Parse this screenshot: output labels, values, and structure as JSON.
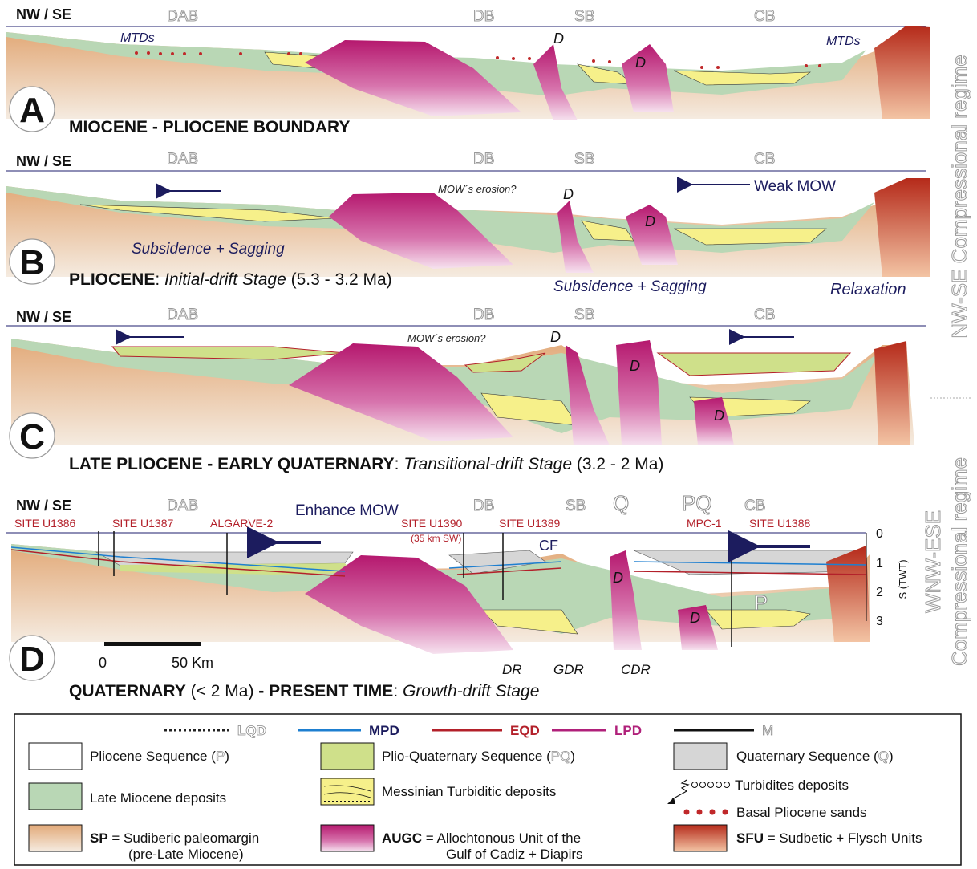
{
  "colors": {
    "sp_top": "#e2a978",
    "sp_bottom": "#f3e6d8",
    "late_miocene": "#b9d7b5",
    "pliocene": "#ffffff",
    "plio_quaternary": "#cfe08a",
    "quaternary": "#d6d6d6",
    "messinian": "#f6f08a",
    "augc_top": "#b5186e",
    "augc_bottom": "#f3d9ec",
    "sfu_top": "#b52a1a",
    "sfu_bottom": "#f3c4a4",
    "lqd": "#222222",
    "mpd": "#1e7fd0",
    "eqd": "#b3202a",
    "lpd": "#b0207a",
    "m": "#111111",
    "navy": "#1c1c5e",
    "sand": "#c0282a"
  },
  "side_labels": {
    "right_top": "NW-SE Compressional regime",
    "right_bottom_1": "WNW-ESE",
    "right_bottom_2": "Compressional regime"
  },
  "panels": {
    "A": {
      "letter": "A",
      "orientation": "NW / SE",
      "basins": {
        "dab": "DAB",
        "db": "DB",
        "sb": "SB",
        "cb": "CB"
      },
      "title_bold": "MIOCENE - PLIOCENE BOUNDARY",
      "labels": {
        "mtds_left": "MTDs",
        "mtds_right": "MTDs",
        "d1": "D",
        "d2": "D"
      }
    },
    "B": {
      "letter": "B",
      "orientation": "NW / SE",
      "basins": {
        "dab": "DAB",
        "db": "DB",
        "sb": "SB",
        "cb": "CB"
      },
      "title_bold": "PLIOCENE",
      "title_colon": ": ",
      "title_italic": "Initial-drift Stage",
      "title_plain": " (5.3 - 3.2 Ma)",
      "labels": {
        "mow_erosion": "MOW´s erosion?",
        "weak_mow": "Weak MOW",
        "subsidence_left": "Subsidence + Sagging",
        "subsidence_right": "Subsidence + Sagging",
        "relaxation": "Relaxation",
        "d1": "D",
        "d2": "D"
      }
    },
    "C": {
      "letter": "C",
      "orientation": "NW / SE",
      "basins": {
        "dab": "DAB",
        "db": "DB",
        "sb": "SB",
        "cb": "CB"
      },
      "title_bold": "LATE PLIOCENE - EARLY QUATERNARY",
      "title_colon": ": ",
      "title_italic": "Transitional-drift Stage",
      "title_plain": "  (3.2 - 2 Ma)",
      "labels": {
        "mow_erosion": "MOW´s erosion?",
        "d1": "D",
        "d2": "D",
        "d3": "D"
      }
    },
    "D": {
      "letter": "D",
      "orientation": "NW / SE",
      "basins": {
        "dab": "DAB",
        "db": "DB",
        "sb": "SB",
        "cb": "CB"
      },
      "title_bold_1": "QUATERNARY",
      "title_plain_1": " (< 2 Ma) ",
      "title_bold_2": "- PRESENT TIME",
      "title_colon": ": ",
      "title_italic": "Growth-drift Stage",
      "labels": {
        "enhance_mow": "Enhance MOW",
        "site_u1386": "SITE U1386",
        "site_u1387": "SITE U1387",
        "algarve": "ALGARVE-2",
        "site_u1390": "SITE U1390",
        "site_u1390_note": "(35 km SW)",
        "site_u1389": "SITE U1389",
        "mpc1": "MPC-1",
        "site_u1388": "SITE U1388",
        "q": "Q",
        "pq": "PQ",
        "p": "P",
        "cf": "CF",
        "dr": "DR",
        "gdr": "GDR",
        "cdr": "CDR",
        "d1": "D",
        "d2": "D"
      },
      "scale": {
        "zero": "0",
        "fifty": "50 Km"
      },
      "twt_axis": {
        "title": "S (TWT)",
        "ticks": [
          "0",
          "1",
          "2",
          "3"
        ]
      }
    }
  },
  "legend": {
    "lines": [
      {
        "label": "LQD",
        "style": "dotted",
        "color": "#222222"
      },
      {
        "label": "MPD",
        "style": "solid",
        "color": "#1e7fd0"
      },
      {
        "label": "EQD",
        "style": "solid",
        "color": "#b3202a"
      },
      {
        "label": "LPD",
        "style": "solid",
        "color": "#b0207a"
      },
      {
        "label": "M",
        "style": "solid",
        "color": "#111111"
      }
    ],
    "items": {
      "pliocene": {
        "text": "Pliocene Sequence (",
        "letter": "P",
        "close": ")"
      },
      "pq": {
        "text": "Plio-Quaternary Sequence (",
        "letter": "PQ",
        "close": ")"
      },
      "quaternary": {
        "text": "Quaternary Sequence (",
        "letter": "Q",
        "close": ")"
      },
      "late_miocene": {
        "text": "Late Miocene deposits"
      },
      "messinian": {
        "text": "Messinian Turbiditic deposits"
      },
      "turbidites": {
        "text": "Turbidites deposits"
      },
      "basal_sands": {
        "text": "Basal Pliocene sands"
      },
      "sp": {
        "abbr": "SP",
        "text1": " = Sudiberic paleomargin",
        "text2": "(pre-Late Miocene)"
      },
      "augc": {
        "abbr": "AUGC",
        "text1": " = Allochtonous Unit of the",
        "text2": "Gulf of Cadiz + Diapirs"
      },
      "sfu": {
        "abbr": "SFU",
        "text": " = Sudbetic + Flysch Units"
      }
    }
  }
}
